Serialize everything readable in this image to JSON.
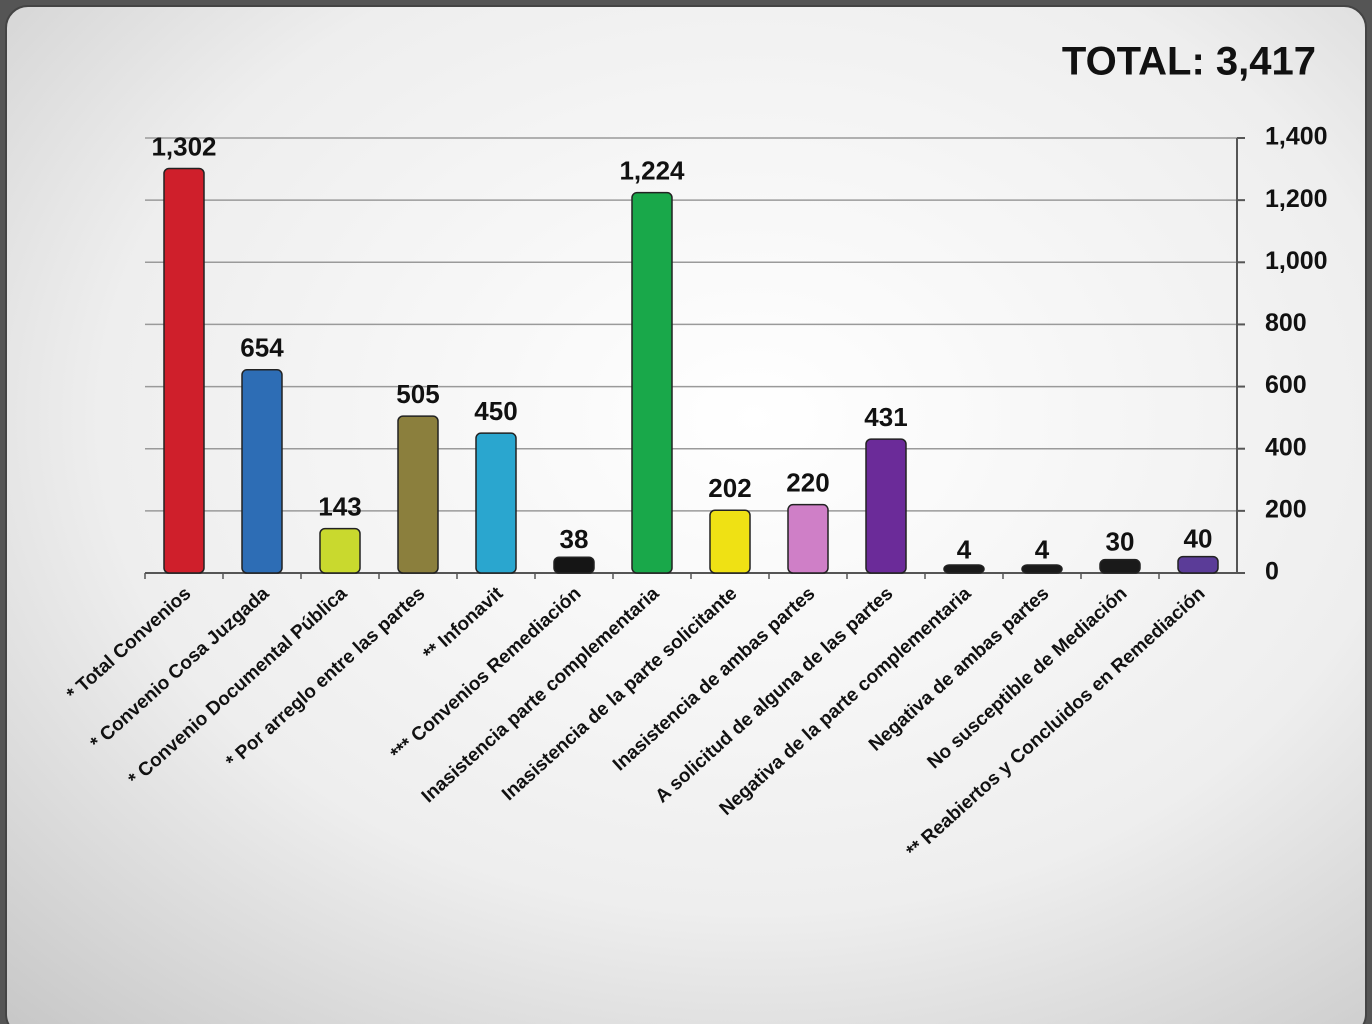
{
  "chart_data": {
    "type": "bar",
    "title": "TOTAL:  3,417",
    "categories": [
      "* Total Convenios",
      "* Convenio Cosa Juzgada",
      "* Convenio Documental Pública",
      "* Por arreglo entre las partes",
      "** Infonavit",
      "*** Convenios Remediación",
      "Inasistencia parte complementaria",
      "Inasistencia de la parte solicitante",
      "Inasistencia de ambas partes",
      "A solicitud de alguna de las partes",
      "Negativa de la parte complementaria",
      "Negativa de ambas partes",
      "No susceptible de Mediación",
      "** Reabiertos y Concluidos en  Remediación"
    ],
    "values": [
      1302,
      654,
      143,
      505,
      450,
      38,
      1224,
      202,
      220,
      431,
      4,
      4,
      30,
      40
    ],
    "value_labels": [
      "1,302",
      "654",
      "143",
      "505",
      "450",
      "38",
      "1,224",
      "202",
      "220",
      "431",
      "4",
      "4",
      "30",
      "40"
    ],
    "colors": [
      "#cf1f2b",
      "#2d6db5",
      "#c9d92e",
      "#8b7f3d",
      "#2aa6cf",
      "#151515",
      "#19a84a",
      "#efe114",
      "#cf7fc7",
      "#6b2b99",
      "#1a1a1a",
      "#1a1a1a",
      "#1a1a1a",
      "#5b3c98"
    ],
    "ylim": [
      0,
      1400
    ],
    "yticks": [
      0,
      200,
      400,
      600,
      800,
      {
        "value": 1000,
        "label": "1,000"
      },
      {
        "value": 1200,
        "label": "1,200"
      },
      {
        "value": 1400,
        "label": "1,400"
      }
    ],
    "grid": true
  }
}
